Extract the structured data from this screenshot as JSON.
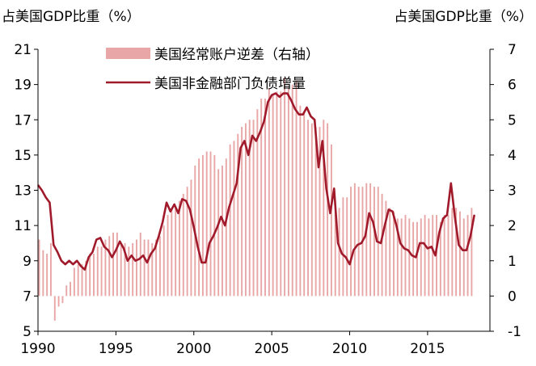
{
  "chart_data": {
    "type": "bar+line",
    "left_axis": {
      "title": "占美国GDP比重（%）",
      "ylim": [
        5,
        21
      ],
      "ticks": [
        5,
        7,
        9,
        11,
        13,
        15,
        17,
        19,
        21
      ]
    },
    "right_axis": {
      "title": "占美国GDP比重（%）",
      "ylim": [
        -1,
        7
      ],
      "ticks": [
        -1,
        0,
        1,
        2,
        3,
        4,
        5,
        6,
        7
      ]
    },
    "x_axis": {
      "range": [
        1990,
        2019
      ],
      "ticks": [
        1990,
        1995,
        2000,
        2005,
        2010,
        2015
      ]
    },
    "legend": {
      "placement": "top-center"
    },
    "series": [
      {
        "name": "美国经常账户逆差（右轴）",
        "kind": "bar",
        "axis": "right",
        "color": "#e8a6a6",
        "x": [
          1990.0,
          1990.25,
          1990.5,
          1990.75,
          1991.0,
          1991.25,
          1991.5,
          1991.75,
          1992.0,
          1992.25,
          1992.5,
          1992.75,
          1993.0,
          1993.25,
          1993.5,
          1993.75,
          1994.0,
          1994.25,
          1994.5,
          1994.75,
          1995.0,
          1995.25,
          1995.5,
          1995.75,
          1996.0,
          1996.25,
          1996.5,
          1996.75,
          1997.0,
          1997.25,
          1997.5,
          1997.75,
          1998.0,
          1998.25,
          1998.5,
          1998.75,
          1999.0,
          1999.25,
          1999.5,
          1999.75,
          2000.0,
          2000.25,
          2000.5,
          2000.75,
          2001.0,
          2001.25,
          2001.5,
          2001.75,
          2002.0,
          2002.25,
          2002.5,
          2002.75,
          2003.0,
          2003.25,
          2003.5,
          2003.75,
          2004.0,
          2004.25,
          2004.5,
          2004.75,
          2005.0,
          2005.25,
          2005.5,
          2005.75,
          2006.0,
          2006.25,
          2006.5,
          2006.75,
          2007.0,
          2007.25,
          2007.5,
          2007.75,
          2008.0,
          2008.25,
          2008.5,
          2008.75,
          2009.0,
          2009.25,
          2009.5,
          2009.75,
          2010.0,
          2010.25,
          2010.5,
          2010.75,
          2011.0,
          2011.25,
          2011.5,
          2011.75,
          2012.0,
          2012.25,
          2012.5,
          2012.75,
          2013.0,
          2013.25,
          2013.5,
          2013.75,
          2014.0,
          2014.25,
          2014.5,
          2014.75,
          2015.0,
          2015.25,
          2015.5,
          2015.75,
          2016.0,
          2016.25,
          2016.5,
          2016.75,
          2017.0,
          2017.25,
          2017.5,
          2017.75
        ],
        "values": [
          1.6,
          1.3,
          1.2,
          1.5,
          -0.7,
          -0.3,
          -0.2,
          0.3,
          0.4,
          0.8,
          0.9,
          0.9,
          1.0,
          1.2,
          1.2,
          1.4,
          1.4,
          1.6,
          1.7,
          1.8,
          1.8,
          1.5,
          1.5,
          1.4,
          1.5,
          1.6,
          1.8,
          1.6,
          1.6,
          1.5,
          1.6,
          1.7,
          2.0,
          2.3,
          2.5,
          2.5,
          2.7,
          2.9,
          3.1,
          3.3,
          3.7,
          3.9,
          4.0,
          4.1,
          4.1,
          4.0,
          3.6,
          3.7,
          3.9,
          4.3,
          4.4,
          4.6,
          4.8,
          4.9,
          5.0,
          5.0,
          5.3,
          5.6,
          5.6,
          5.9,
          5.7,
          5.8,
          5.8,
          6.2,
          5.9,
          6.0,
          6.1,
          5.4,
          5.2,
          5.0,
          4.9,
          4.8,
          4.8,
          5.0,
          4.9,
          4.3,
          2.7,
          2.5,
          2.8,
          2.8,
          3.1,
          3.2,
          3.1,
          3.1,
          3.2,
          3.2,
          3.1,
          3.1,
          2.9,
          2.7,
          2.5,
          2.4,
          2.2,
          2.2,
          2.3,
          2.2,
          2.1,
          2.1,
          2.2,
          2.3,
          2.2,
          2.3,
          2.3,
          2.1,
          2.3,
          2.3,
          2.5,
          2.5,
          2.4,
          2.2,
          2.3,
          2.5
        ]
      },
      {
        "name": "美国非金融部门负债增量",
        "kind": "line",
        "axis": "left",
        "color": "#a01a2b",
        "x": [
          1990.0,
          1990.25,
          1990.5,
          1990.75,
          1991.0,
          1991.25,
          1991.5,
          1991.75,
          1992.0,
          1992.25,
          1992.5,
          1992.75,
          1993.0,
          1993.25,
          1993.5,
          1993.75,
          1994.0,
          1994.25,
          1994.5,
          1994.75,
          1995.0,
          1995.25,
          1995.5,
          1995.75,
          1996.0,
          1996.25,
          1996.5,
          1996.75,
          1997.0,
          1997.25,
          1997.5,
          1997.75,
          1998.0,
          1998.25,
          1998.5,
          1998.75,
          1999.0,
          1999.25,
          1999.5,
          1999.75,
          2000.0,
          2000.25,
          2000.5,
          2000.75,
          2001.0,
          2001.25,
          2001.5,
          2001.75,
          2002.0,
          2002.25,
          2002.5,
          2002.75,
          2003.0,
          2003.25,
          2003.5,
          2003.75,
          2004.0,
          2004.25,
          2004.5,
          2004.75,
          2005.0,
          2005.25,
          2005.5,
          2005.75,
          2006.0,
          2006.25,
          2006.5,
          2006.75,
          2007.0,
          2007.25,
          2007.5,
          2007.75,
          2008.0,
          2008.25,
          2008.5,
          2008.75,
          2009.0,
          2009.25,
          2009.5,
          2009.75,
          2010.0,
          2010.25,
          2010.5,
          2010.75,
          2011.0,
          2011.25,
          2011.5,
          2011.75,
          2012.0,
          2012.25,
          2012.5,
          2012.75,
          2013.0,
          2013.25,
          2013.5,
          2013.75,
          2014.0,
          2014.25,
          2014.5,
          2014.75,
          2015.0,
          2015.25,
          2015.5,
          2015.75,
          2016.0,
          2016.25,
          2016.5,
          2016.75,
          2017.0,
          2017.25,
          2017.5,
          2017.75,
          2018.0
        ],
        "values": [
          13.3,
          13.0,
          12.6,
          12.3,
          9.9,
          9.5,
          9.0,
          8.8,
          9.0,
          8.8,
          9.0,
          8.7,
          8.5,
          9.2,
          9.5,
          10.2,
          10.3,
          9.8,
          9.6,
          9.2,
          9.6,
          10.1,
          9.7,
          9.0,
          9.3,
          9.0,
          9.1,
          9.3,
          8.9,
          9.4,
          9.7,
          10.4,
          11.2,
          12.3,
          11.8,
          12.2,
          11.7,
          12.5,
          12.4,
          11.9,
          10.9,
          9.8,
          8.9,
          8.9,
          10.0,
          10.4,
          10.9,
          11.5,
          11.0,
          12.0,
          12.7,
          13.4,
          15.4,
          15.8,
          15.0,
          16.1,
          15.8,
          16.3,
          16.9,
          18.0,
          18.4,
          18.5,
          18.3,
          18.5,
          18.5,
          18.1,
          17.6,
          17.3,
          17.3,
          17.7,
          17.2,
          17.0,
          14.3,
          15.8,
          13.1,
          11.7,
          13.1,
          10.0,
          9.4,
          9.2,
          8.8,
          9.6,
          9.9,
          10.0,
          10.4,
          11.7,
          11.2,
          10.1,
          10.0,
          11.0,
          11.9,
          11.8,
          11.0,
          10.0,
          9.7,
          9.6,
          9.3,
          9.2,
          10.0,
          10.0,
          9.7,
          9.8,
          9.3,
          10.6,
          11.4,
          11.6,
          13.4,
          11.5,
          9.9,
          9.6,
          9.6,
          10.4,
          11.6
        ]
      }
    ]
  }
}
